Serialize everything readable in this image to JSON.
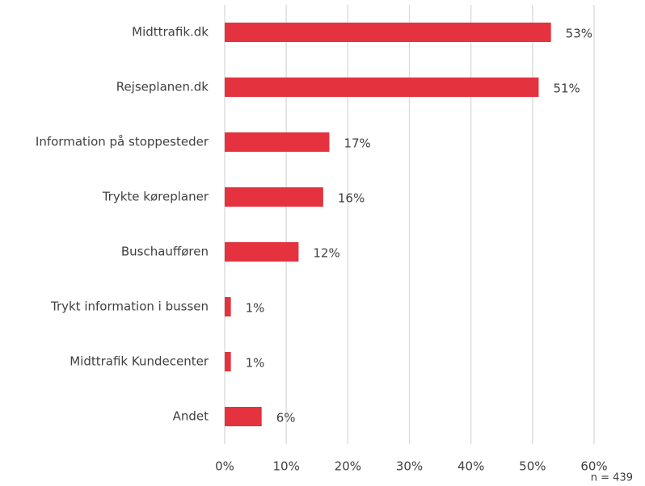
{
  "chart_data": {
    "type": "barh",
    "categories": [
      "Midttrafik.dk",
      "Rejseplanen.dk",
      "Information på stoppesteder",
      "Trykte køreplaner",
      "Buschaufføren",
      "Trykt information i bussen",
      "Midttrafik Kundecenter",
      "Andet"
    ],
    "values": [
      53,
      51,
      17,
      16,
      12,
      1,
      1,
      6
    ],
    "value_labels": [
      "53%",
      "51%",
      "17%",
      "16%",
      "12%",
      "1%",
      "1%",
      "6%"
    ],
    "color": "#e4323f",
    "xlim": [
      0,
      60
    ],
    "xticks": [
      {
        "value": 0,
        "label": "0%"
      },
      {
        "value": 10,
        "label": "10%"
      },
      {
        "value": 20,
        "label": "20%"
      },
      {
        "value": 30,
        "label": "30%"
      },
      {
        "value": 40,
        "label": "40%"
      },
      {
        "value": 50,
        "label": "50%"
      },
      {
        "value": 60,
        "label": "60%"
      }
    ],
    "grid": true,
    "annotation": "n = 439"
  }
}
